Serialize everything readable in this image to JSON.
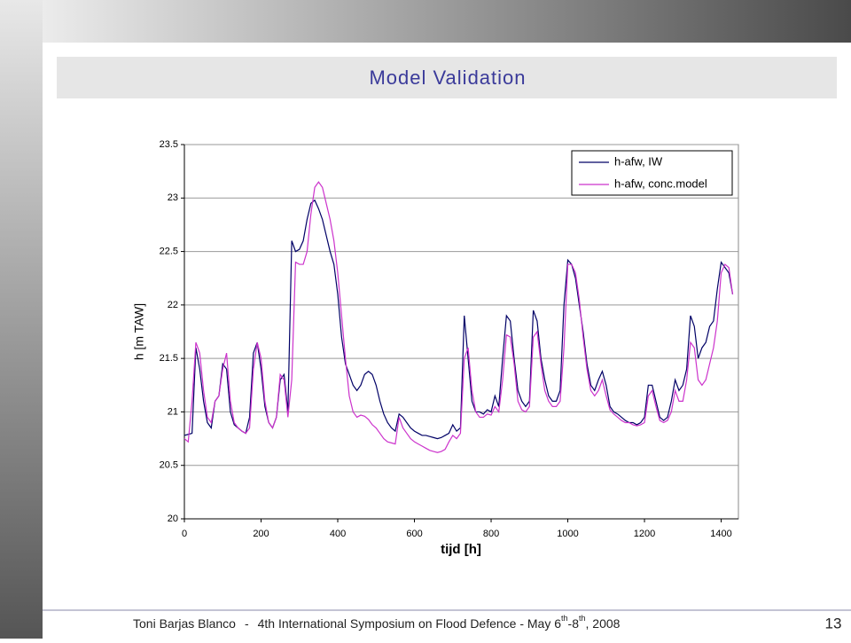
{
  "slide": {
    "title": "Model Validation",
    "footer": {
      "author": "Toni Barjas Blanco",
      "separator": "-",
      "event": "4th International Symposium on Flood Defence - May 6",
      "sup1": "th",
      "mid": "-8",
      "sup2": "th",
      "end": ", 2008"
    },
    "page_number": "13"
  },
  "chart_data": {
    "type": "line",
    "x_label": "tijd [h]",
    "y_label": "h [m TAW]",
    "xlim": [
      0,
      1445
    ],
    "xticks": [
      0,
      200,
      400,
      600,
      800,
      1000,
      1200,
      1400
    ],
    "ylim": [
      20,
      23.5
    ],
    "yticks": [
      20,
      20.5,
      21,
      21.5,
      22,
      22.5,
      23,
      23.5
    ],
    "grid": true,
    "legend": "upper right",
    "x": [
      0,
      10,
      20,
      30,
      40,
      50,
      60,
      70,
      80,
      90,
      100,
      110,
      120,
      130,
      140,
      150,
      160,
      170,
      180,
      190,
      200,
      210,
      220,
      230,
      240,
      250,
      260,
      270,
      280,
      290,
      300,
      310,
      320,
      330,
      340,
      350,
      360,
      370,
      380,
      390,
      400,
      410,
      420,
      430,
      440,
      450,
      460,
      470,
      480,
      490,
      500,
      510,
      520,
      530,
      540,
      550,
      560,
      570,
      580,
      590,
      600,
      610,
      620,
      630,
      640,
      650,
      660,
      670,
      680,
      690,
      700,
      710,
      720,
      730,
      740,
      750,
      760,
      770,
      780,
      790,
      800,
      810,
      820,
      830,
      840,
      850,
      860,
      870,
      880,
      890,
      900,
      910,
      920,
      930,
      940,
      950,
      960,
      970,
      980,
      990,
      1000,
      1010,
      1020,
      1030,
      1040,
      1050,
      1060,
      1070,
      1080,
      1090,
      1100,
      1110,
      1120,
      1130,
      1140,
      1150,
      1160,
      1170,
      1180,
      1190,
      1200,
      1210,
      1220,
      1230,
      1240,
      1250,
      1260,
      1270,
      1280,
      1290,
      1300,
      1310,
      1320,
      1330,
      1340,
      1350,
      1360,
      1370,
      1380,
      1390,
      1400,
      1410,
      1420,
      1430
    ],
    "series": [
      {
        "name": "h-afw, IW",
        "color": "#000066",
        "values": [
          20.78,
          20.79,
          20.8,
          21.6,
          21.4,
          21.1,
          20.9,
          20.85,
          21.1,
          21.15,
          21.45,
          21.4,
          21.0,
          20.88,
          20.85,
          20.82,
          20.8,
          20.95,
          21.55,
          21.65,
          21.4,
          21.05,
          20.9,
          20.85,
          20.95,
          21.3,
          21.35,
          21.0,
          22.6,
          22.5,
          22.52,
          22.6,
          22.8,
          22.95,
          22.98,
          22.9,
          22.8,
          22.65,
          22.5,
          22.38,
          22.1,
          21.7,
          21.45,
          21.35,
          21.25,
          21.2,
          21.25,
          21.35,
          21.38,
          21.35,
          21.25,
          21.1,
          20.98,
          20.9,
          20.85,
          20.82,
          20.98,
          20.95,
          20.9,
          20.85,
          20.82,
          20.8,
          20.78,
          20.78,
          20.77,
          20.76,
          20.75,
          20.76,
          20.78,
          20.8,
          20.88,
          20.82,
          20.85,
          21.9,
          21.5,
          21.1,
          21.0,
          21.0,
          20.98,
          21.02,
          21.0,
          21.15,
          21.05,
          21.5,
          21.9,
          21.85,
          21.5,
          21.2,
          21.1,
          21.05,
          21.1,
          21.95,
          21.85,
          21.5,
          21.3,
          21.15,
          21.1,
          21.1,
          21.2,
          22.0,
          22.42,
          22.38,
          22.25,
          22.0,
          21.75,
          21.45,
          21.25,
          21.2,
          21.3,
          21.38,
          21.25,
          21.05,
          21.0,
          20.98,
          20.95,
          20.92,
          20.9,
          20.9,
          20.88,
          20.9,
          20.95,
          21.25,
          21.25,
          21.1,
          20.95,
          20.92,
          20.95,
          21.1,
          21.3,
          21.2,
          21.25,
          21.4,
          21.9,
          21.8,
          21.5,
          21.6,
          21.65,
          21.8,
          21.85,
          22.15,
          22.4,
          22.35,
          22.3,
          22.1
        ]
      },
      {
        "name": "h-afw, conc.model",
        "color": "#cc33cc",
        "values": [
          20.75,
          20.72,
          21.1,
          21.65,
          21.55,
          21.2,
          20.95,
          20.9,
          21.1,
          21.15,
          21.4,
          21.55,
          21.1,
          20.9,
          20.85,
          20.82,
          20.8,
          20.85,
          21.4,
          21.65,
          21.5,
          21.1,
          20.9,
          20.85,
          20.95,
          21.35,
          21.3,
          20.95,
          21.3,
          22.4,
          22.38,
          22.38,
          22.5,
          22.85,
          23.1,
          23.15,
          23.1,
          22.95,
          22.8,
          22.6,
          22.3,
          21.9,
          21.5,
          21.15,
          21.0,
          20.95,
          20.97,
          20.96,
          20.93,
          20.88,
          20.85,
          20.8,
          20.75,
          20.72,
          20.71,
          20.7,
          20.95,
          20.85,
          20.8,
          20.75,
          20.72,
          20.7,
          20.68,
          20.66,
          20.64,
          20.63,
          20.62,
          20.63,
          20.65,
          20.72,
          20.78,
          20.75,
          20.8,
          21.5,
          21.6,
          21.2,
          21.0,
          20.95,
          20.95,
          20.98,
          20.97,
          21.05,
          21.0,
          21.3,
          21.72,
          21.7,
          21.45,
          21.1,
          21.02,
          21.0,
          21.05,
          21.7,
          21.75,
          21.45,
          21.2,
          21.1,
          21.05,
          21.05,
          21.1,
          21.6,
          22.38,
          22.38,
          22.3,
          22.05,
          21.7,
          21.4,
          21.2,
          21.15,
          21.2,
          21.3,
          21.15,
          21.02,
          20.98,
          20.95,
          20.92,
          20.9,
          20.9,
          20.88,
          20.87,
          20.88,
          20.9,
          21.15,
          21.2,
          21.05,
          20.92,
          20.9,
          20.92,
          21.0,
          21.2,
          21.1,
          21.1,
          21.3,
          21.65,
          21.6,
          21.3,
          21.25,
          21.3,
          21.45,
          21.6,
          21.85,
          22.3,
          22.38,
          22.35,
          22.1
        ]
      }
    ]
  }
}
